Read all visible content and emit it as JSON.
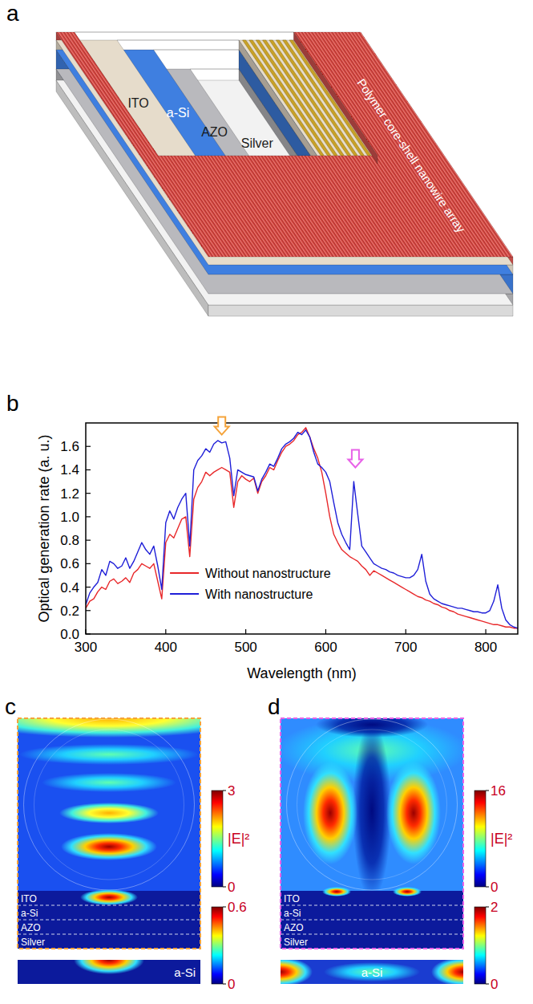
{
  "panels": [
    "a",
    "b",
    "c",
    "d"
  ],
  "schematic": {
    "layers": [
      {
        "name": "Polymer core-shell nanowire array",
        "color": "#d9534f"
      },
      {
        "name": "ITO",
        "color": "#e6dccb"
      },
      {
        "name": "a-Si",
        "color": "#3f7fe0"
      },
      {
        "name": "AZO",
        "color": "#b9b9bd"
      },
      {
        "name": "Silver",
        "color": "#f2f2f2"
      }
    ]
  },
  "chart_data": {
    "type": "line",
    "x_label": "Wavelength (nm)",
    "y_label": "Optical generation rate (a. u.)",
    "x": [
      300,
      305,
      310,
      315,
      320,
      325,
      330,
      335,
      340,
      345,
      350,
      355,
      360,
      365,
      370,
      375,
      380,
      385,
      390,
      395,
      400,
      405,
      410,
      415,
      420,
      425,
      430,
      435,
      440,
      445,
      450,
      455,
      460,
      465,
      470,
      475,
      480,
      485,
      490,
      495,
      500,
      505,
      510,
      515,
      520,
      525,
      530,
      535,
      540,
      545,
      550,
      555,
      560,
      565,
      570,
      575,
      580,
      585,
      590,
      595,
      600,
      605,
      610,
      615,
      620,
      625,
      630,
      635,
      640,
      645,
      650,
      655,
      660,
      665,
      670,
      675,
      680,
      685,
      690,
      695,
      700,
      705,
      710,
      715,
      720,
      725,
      730,
      735,
      740,
      745,
      750,
      755,
      760,
      765,
      770,
      775,
      780,
      785,
      790,
      795,
      800,
      805,
      810,
      815,
      820,
      825,
      830,
      835,
      840
    ],
    "series": [
      {
        "name": "Without nanostructure",
        "color": "#e8282a",
        "values": [
          0.22,
          0.28,
          0.3,
          0.36,
          0.4,
          0.38,
          0.45,
          0.47,
          0.43,
          0.45,
          0.48,
          0.44,
          0.52,
          0.55,
          0.6,
          0.58,
          0.56,
          0.6,
          0.45,
          0.3,
          0.78,
          0.85,
          0.82,
          0.9,
          0.98,
          1.0,
          0.66,
          1.15,
          1.25,
          1.3,
          1.38,
          1.35,
          1.38,
          1.4,
          1.42,
          1.4,
          1.38,
          1.08,
          1.3,
          1.35,
          1.32,
          1.3,
          1.33,
          1.2,
          1.3,
          1.35,
          1.42,
          1.4,
          1.48,
          1.55,
          1.6,
          1.62,
          1.65,
          1.7,
          1.72,
          1.76,
          1.68,
          1.58,
          1.5,
          1.38,
          1.2,
          1.0,
          0.85,
          0.78,
          0.72,
          0.69,
          0.66,
          0.64,
          0.62,
          0.58,
          0.55,
          0.5,
          0.54,
          0.52,
          0.5,
          0.48,
          0.46,
          0.44,
          0.42,
          0.4,
          0.38,
          0.36,
          0.34,
          0.32,
          0.31,
          0.29,
          0.28,
          0.26,
          0.25,
          0.23,
          0.22,
          0.2,
          0.19,
          0.17,
          0.16,
          0.15,
          0.14,
          0.13,
          0.12,
          0.11,
          0.1,
          0.09,
          0.08,
          0.08,
          0.07,
          0.06,
          0.06,
          0.05,
          0.05
        ]
      },
      {
        "name": "With nanostructure",
        "color": "#1f1fd8",
        "values": [
          0.25,
          0.35,
          0.4,
          0.44,
          0.55,
          0.5,
          0.62,
          0.6,
          0.56,
          0.58,
          0.65,
          0.56,
          0.62,
          0.7,
          0.78,
          0.72,
          0.68,
          0.75,
          0.58,
          0.38,
          0.95,
          1.05,
          0.98,
          1.08,
          1.15,
          1.2,
          0.75,
          1.4,
          1.48,
          1.52,
          1.58,
          1.55,
          1.62,
          1.65,
          1.63,
          1.64,
          1.5,
          1.18,
          1.4,
          1.38,
          1.36,
          1.35,
          1.34,
          1.22,
          1.32,
          1.38,
          1.45,
          1.43,
          1.5,
          1.58,
          1.62,
          1.64,
          1.67,
          1.72,
          1.7,
          1.74,
          1.68,
          1.55,
          1.45,
          1.42,
          1.38,
          1.3,
          1.12,
          0.95,
          0.85,
          0.78,
          0.72,
          1.3,
          1.02,
          0.75,
          0.7,
          0.65,
          0.6,
          0.58,
          0.56,
          0.55,
          0.53,
          0.52,
          0.5,
          0.49,
          0.48,
          0.48,
          0.5,
          0.55,
          0.68,
          0.45,
          0.34,
          0.3,
          0.28,
          0.26,
          0.25,
          0.24,
          0.23,
          0.22,
          0.22,
          0.21,
          0.2,
          0.19,
          0.19,
          0.18,
          0.18,
          0.2,
          0.28,
          0.42,
          0.22,
          0.12,
          0.08,
          0.06,
          0.05
        ]
      }
    ],
    "xlim": [
      300,
      840
    ],
    "ylim": [
      0,
      1.8
    ],
    "xticks": [
      300,
      400,
      500,
      600,
      700,
      800
    ],
    "yticks": [
      {
        "value": 0,
        "label": "0.0"
      },
      0.2,
      0.4,
      0.6,
      0.8,
      {
        "value": 1,
        "label": "1.0"
      },
      1.2,
      1.4,
      1.6
    ],
    "legend": "lower-center",
    "arrows": [
      {
        "x": 470,
        "y": 1.7,
        "color": "#f5a33a"
      },
      {
        "x": 637,
        "y": 1.42,
        "color": "#e862e8"
      }
    ]
  },
  "field_maps": [
    {
      "label": "c",
      "color": "#f5a33a",
      "quantity": "|E|²",
      "colorbar": {
        "range": [
          0,
          3
        ],
        "ticks": [
          0,
          3
        ]
      },
      "layers": [
        "ITO",
        "a-Si",
        "AZO",
        "Silver"
      ],
      "inset": {
        "label": "a-Si",
        "colorbar": {
          "range": [
            0,
            0.6
          ],
          "ticks": [
            0,
            0.6
          ]
        }
      }
    },
    {
      "label": "d",
      "color": "#e862e8",
      "quantity": "|E|²",
      "colorbar": {
        "range": [
          0,
          16
        ],
        "ticks": [
          0,
          16
        ]
      },
      "layers": [
        "ITO",
        "a-Si",
        "AZO",
        "Silver"
      ],
      "inset": {
        "label": "a-Si",
        "colorbar": {
          "range": [
            0,
            2
          ],
          "ticks": [
            0,
            2
          ]
        }
      }
    }
  ]
}
